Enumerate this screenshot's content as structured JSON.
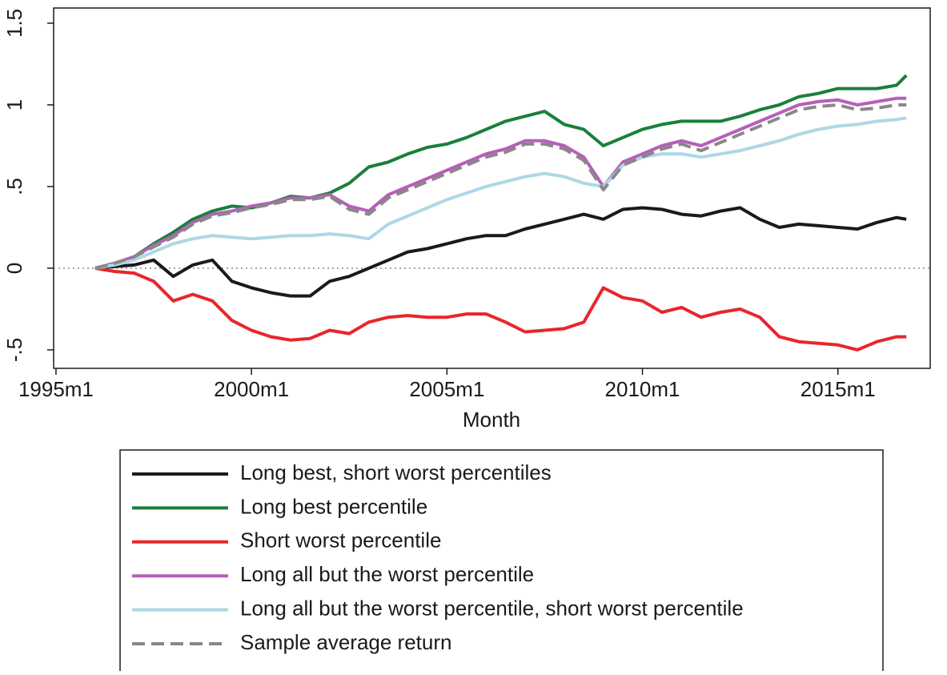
{
  "chart_data": {
    "type": "line",
    "x_label": "Month",
    "x": [
      1996,
      1996.5,
      1997,
      1997.5,
      1998,
      1998.5,
      1999,
      1999.5,
      2000,
      2000.5,
      2001,
      2001.5,
      2002,
      2002.5,
      2003,
      2003.5,
      2004,
      2004.5,
      2005,
      2005.5,
      2006,
      2006.5,
      2007,
      2007.5,
      2008,
      2008.5,
      2009,
      2009.5,
      2010,
      2010.5,
      2011,
      2011.5,
      2012,
      2012.5,
      2013,
      2013.5,
      2014,
      2014.5,
      2015,
      2015.5,
      2016,
      2016.5,
      2016.75
    ],
    "series": [
      {
        "name": "Long best, short worst percentiles",
        "color": "#1a1a1a",
        "values": [
          0,
          0.01,
          0.02,
          0.05,
          -0.05,
          0.02,
          0.05,
          -0.08,
          -0.12,
          -0.15,
          -0.17,
          -0.17,
          -0.08,
          -0.05,
          0.0,
          0.05,
          0.1,
          0.12,
          0.15,
          0.18,
          0.2,
          0.2,
          0.24,
          0.27,
          0.3,
          0.33,
          0.3,
          0.36,
          0.37,
          0.36,
          0.33,
          0.32,
          0.35,
          0.37,
          0.3,
          0.25,
          0.27,
          0.26,
          0.25,
          0.24,
          0.28,
          0.31,
          0.3
        ]
      },
      {
        "name": "Long best percentile",
        "color": "#1a7f3c",
        "values": [
          0,
          0.03,
          0.07,
          0.15,
          0.22,
          0.3,
          0.35,
          0.38,
          0.37,
          0.4,
          0.44,
          0.43,
          0.46,
          0.52,
          0.62,
          0.65,
          0.7,
          0.74,
          0.76,
          0.8,
          0.85,
          0.9,
          0.93,
          0.96,
          0.88,
          0.85,
          0.75,
          0.8,
          0.85,
          0.88,
          0.9,
          0.9,
          0.9,
          0.93,
          0.97,
          1.0,
          1.05,
          1.07,
          1.1,
          1.1,
          1.1,
          1.12,
          1.18
        ]
      },
      {
        "name": "Short worst percentile",
        "color": "#e8262b",
        "values": [
          0,
          -0.02,
          -0.03,
          -0.08,
          -0.2,
          -0.16,
          -0.2,
          -0.32,
          -0.38,
          -0.42,
          -0.44,
          -0.43,
          -0.38,
          -0.4,
          -0.33,
          -0.3,
          -0.29,
          -0.3,
          -0.3,
          -0.28,
          -0.28,
          -0.33,
          -0.39,
          -0.38,
          -0.37,
          -0.33,
          -0.12,
          -0.18,
          -0.2,
          -0.27,
          -0.24,
          -0.3,
          -0.27,
          -0.25,
          -0.3,
          -0.42,
          -0.45,
          -0.46,
          -0.47,
          -0.5,
          -0.45,
          -0.42,
          -0.42
        ]
      },
      {
        "name": "Long all but the worst percentile",
        "color": "#b75fb8",
        "values": [
          0,
          0.03,
          0.07,
          0.14,
          0.2,
          0.28,
          0.33,
          0.35,
          0.38,
          0.4,
          0.43,
          0.43,
          0.45,
          0.38,
          0.35,
          0.45,
          0.5,
          0.55,
          0.6,
          0.65,
          0.7,
          0.73,
          0.78,
          0.78,
          0.75,
          0.68,
          0.5,
          0.65,
          0.7,
          0.75,
          0.78,
          0.75,
          0.8,
          0.85,
          0.9,
          0.95,
          1.0,
          1.02,
          1.03,
          1.0,
          1.02,
          1.04,
          1.04
        ]
      },
      {
        "name": "Long all but the worst percentile, short worst percentile",
        "color": "#add8e6",
        "values": [
          0,
          0.02,
          0.05,
          0.1,
          0.15,
          0.18,
          0.2,
          0.19,
          0.18,
          0.19,
          0.2,
          0.2,
          0.21,
          0.2,
          0.18,
          0.27,
          0.32,
          0.37,
          0.42,
          0.46,
          0.5,
          0.53,
          0.56,
          0.58,
          0.56,
          0.52,
          0.5,
          0.63,
          0.68,
          0.7,
          0.7,
          0.68,
          0.7,
          0.72,
          0.75,
          0.78,
          0.82,
          0.85,
          0.87,
          0.88,
          0.9,
          0.91,
          0.92
        ]
      },
      {
        "name": "Sample average return",
        "color": "#888888",
        "dashed": true,
        "values": [
          0,
          0.03,
          0.07,
          0.13,
          0.19,
          0.27,
          0.32,
          0.34,
          0.37,
          0.39,
          0.42,
          0.42,
          0.44,
          0.36,
          0.33,
          0.43,
          0.48,
          0.53,
          0.58,
          0.63,
          0.68,
          0.71,
          0.76,
          0.76,
          0.73,
          0.66,
          0.48,
          0.63,
          0.68,
          0.73,
          0.76,
          0.72,
          0.77,
          0.82,
          0.87,
          0.92,
          0.97,
          0.99,
          1.0,
          0.97,
          0.98,
          1.0,
          1.0
        ]
      }
    ],
    "xlim": [
      1994.94,
      2017.36
    ],
    "xticks": [
      {
        "value": 1995,
        "label": "1995m1"
      },
      {
        "value": 2000,
        "label": "2000m1"
      },
      {
        "value": 2005,
        "label": "2005m1"
      },
      {
        "value": 2010,
        "label": "2010m1"
      },
      {
        "value": 2015,
        "label": "2015m1"
      }
    ],
    "ylim": [
      -0.613,
      1.593
    ],
    "yticks": [
      {
        "value": -0.5,
        "label": "-.5"
      },
      0,
      {
        "value": 0.5,
        "label": ".5"
      },
      1,
      {
        "value": 1.5,
        "label": "1.5"
      }
    ],
    "zero_line": true,
    "legend": "bottom"
  }
}
